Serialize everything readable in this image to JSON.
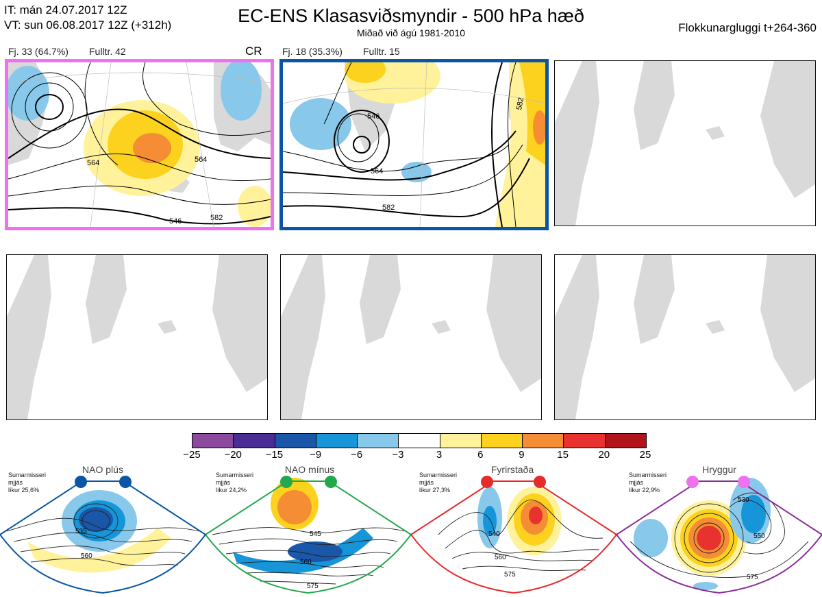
{
  "header": {
    "it_line": "IT: mán 24.07.2017 12Z",
    "vt_line": "VT: sun 06.08.2017 12Z  (+312h)",
    "title": "EC-ENS Klasasviðsmyndir - 500 hPa hæð",
    "subtitle": "Miðað við ágú 1981-2010",
    "window": "Flokkunargluggi t+264-360"
  },
  "clusters": [
    {
      "label": "Fj. 33 (64.7%)",
      "fulltr": "Fulltr. 42",
      "tag": "CR",
      "border": "#ee72ee",
      "contour_labels": [
        "564",
        "564",
        "546",
        "582"
      ]
    },
    {
      "label": "Fj. 18 (35.3%)",
      "fulltr": "Fulltr. 15",
      "tag": "",
      "border": "#0b56a4",
      "contour_labels": [
        "546",
        "564",
        "582",
        "582"
      ]
    }
  ],
  "colorbar": {
    "colors": [
      "#8b4a9e",
      "#4a2d94",
      "#1a57a8",
      "#1696d9",
      "#88c8ea",
      "#ffffff",
      "#fff29a",
      "#fdd21e",
      "#f58d35",
      "#e8322f",
      "#b2141b"
    ],
    "ticks": [
      "−25",
      "−20",
      "−15",
      "−9",
      "−6",
      "−3",
      "3",
      "6",
      "9",
      "15",
      "20",
      "25"
    ]
  },
  "regimes": [
    {
      "name": "NAO plús",
      "note_lines": [
        "Sumarmisseri",
        "mjjás",
        "líkur 25,6%"
      ],
      "color": "#0b56a4",
      "contour_labels": [
        "535",
        "560"
      ]
    },
    {
      "name": "NAO mínus",
      "note_lines": [
        "Sumarmisseri",
        "mjjás",
        "líkur 24,2%"
      ],
      "color": "#22a94a",
      "contour_labels": [
        "545",
        "560",
        "575"
      ]
    },
    {
      "name": "Fyrirstaða",
      "note_lines": [
        "Sumarmisseri",
        "mjjás",
        "líkur 27,3%"
      ],
      "color": "#e62b2b",
      "contour_labels": [
        "540",
        "560",
        "575"
      ]
    },
    {
      "name": "Hryggur",
      "note_lines": [
        "Sumarmisseri",
        "mjjás",
        "líkur 22,9%"
      ],
      "color": "#ee72ee",
      "contour_labels": [
        "530",
        "550",
        "575"
      ]
    }
  ]
}
